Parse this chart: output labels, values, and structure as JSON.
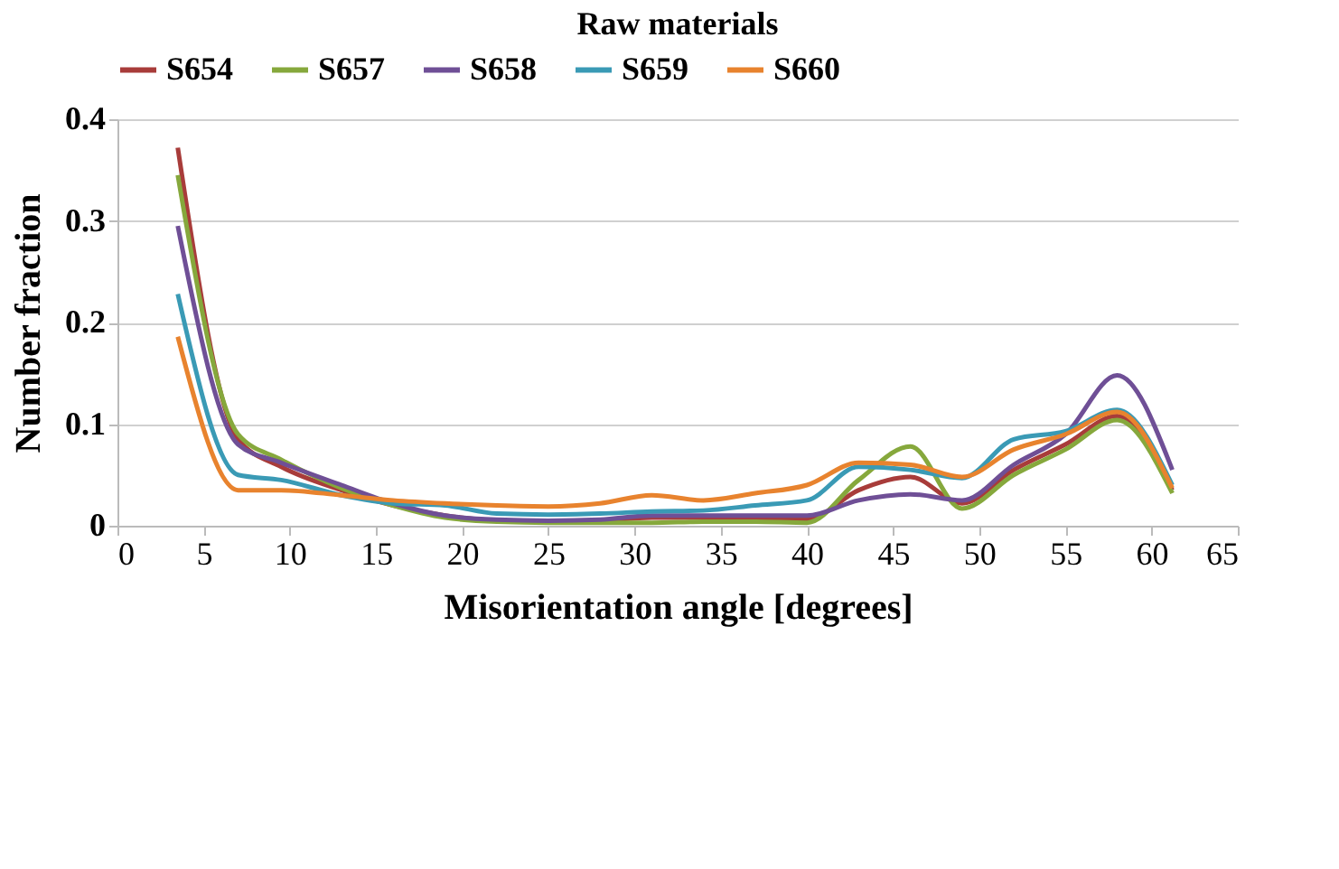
{
  "chart_data": {
    "type": "line",
    "title": "Raw materials",
    "xlabel": "Misorientation angle [degrees]",
    "ylabel": "Number fraction",
    "x": [
      3.5,
      7,
      9.5,
      13,
      16,
      19,
      22,
      25,
      28,
      31,
      34,
      37,
      40,
      43,
      46,
      49,
      52,
      55,
      58,
      61.2
    ],
    "series": [
      {
        "name": "S654",
        "color": "#a83c3a",
        "values": [
          0.372,
          0.085,
          0.058,
          0.035,
          0.02,
          0.01,
          0.005,
          0.004,
          0.005,
          0.008,
          0.008,
          0.007,
          0.006,
          0.035,
          0.048,
          0.022,
          0.055,
          0.08,
          0.108,
          0.035
        ]
      },
      {
        "name": "S657",
        "color": "#86a83c",
        "values": [
          0.345,
          0.09,
          0.065,
          0.037,
          0.02,
          0.008,
          0.004,
          0.003,
          0.003,
          0.003,
          0.004,
          0.004,
          0.003,
          0.045,
          0.078,
          0.017,
          0.05,
          0.075,
          0.104,
          0.032
        ]
      },
      {
        "name": "S658",
        "color": "#6f4f96",
        "values": [
          0.295,
          0.08,
          0.062,
          0.04,
          0.022,
          0.01,
          0.006,
          0.005,
          0.006,
          0.01,
          0.01,
          0.01,
          0.01,
          0.025,
          0.031,
          0.025,
          0.06,
          0.09,
          0.148,
          0.055
        ]
      },
      {
        "name": "S659",
        "color": "#3a9ab5",
        "values": [
          0.228,
          0.05,
          0.045,
          0.03,
          0.022,
          0.02,
          0.012,
          0.011,
          0.012,
          0.014,
          0.015,
          0.02,
          0.025,
          0.058,
          0.055,
          0.047,
          0.085,
          0.093,
          0.114,
          0.04
        ]
      },
      {
        "name": "S660",
        "color": "#e8832e",
        "values": [
          0.186,
          0.035,
          0.035,
          0.03,
          0.025,
          0.022,
          0.02,
          0.019,
          0.022,
          0.03,
          0.025,
          0.032,
          0.04,
          0.062,
          0.06,
          0.048,
          0.075,
          0.09,
          0.112,
          0.037
        ]
      }
    ],
    "xlim": [
      0,
      65
    ],
    "xticks": [
      0,
      5,
      10,
      15,
      20,
      25,
      30,
      35,
      40,
      45,
      50,
      55,
      60,
      65
    ],
    "ylim": [
      0,
      0.4
    ],
    "yticks": [
      0,
      0.1,
      0.2,
      0.3,
      0.4
    ],
    "grid": "y",
    "legend": "top",
    "line_style": "solid",
    "marker": "none"
  }
}
